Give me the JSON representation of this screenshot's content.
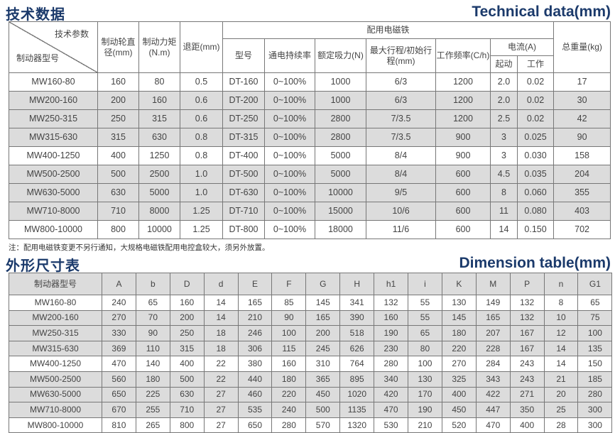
{
  "tech": {
    "title_cn": "技术数据",
    "title_en": "Technical data(mm)",
    "header": {
      "diag_top": "技术参数",
      "diag_bottom": "制动器型号",
      "wheel_dia": "制动轮直径(mm)",
      "torque": "制动力矩(N.m)",
      "retreat": "退距(mm)",
      "magnet_group": "配用电磁铁",
      "model": "型号",
      "duty": "通电持续率",
      "force": "额定吸力(N)",
      "stroke": "最大行程/初始行程(mm)",
      "freq": "工作频率(C/h)",
      "current": "电流(A)",
      "start": "起动",
      "work": "工作",
      "weight": "总重量(kg)"
    },
    "rows": [
      [
        "MW160-80",
        "160",
        "80",
        "0.5",
        "DT-160",
        "0~100%",
        "1000",
        "6/3",
        "1200",
        "2.0",
        "0.02",
        "17"
      ],
      [
        "MW200-160",
        "200",
        "160",
        "0.6",
        "DT-200",
        "0~100%",
        "1000",
        "6/3",
        "1200",
        "2.0",
        "0.02",
        "30"
      ],
      [
        "MW250-315",
        "250",
        "315",
        "0.6",
        "DT-250",
        "0~100%",
        "2800",
        "7/3.5",
        "1200",
        "2.5",
        "0.02",
        "42"
      ],
      [
        "MW315-630",
        "315",
        "630",
        "0.8",
        "DT-315",
        "0~100%",
        "2800",
        "7/3.5",
        "900",
        "3",
        "0.025",
        "90"
      ],
      [
        "MW400-1250",
        "400",
        "1250",
        "0.8",
        "DT-400",
        "0~100%",
        "5000",
        "8/4",
        "900",
        "3",
        "0.030",
        "158"
      ],
      [
        "MW500-2500",
        "500",
        "2500",
        "1.0",
        "DT-500",
        "0~100%",
        "5000",
        "8/4",
        "600",
        "4.5",
        "0.035",
        "204"
      ],
      [
        "MW630-5000",
        "630",
        "5000",
        "1.0",
        "DT-630",
        "0~100%",
        "10000",
        "9/5",
        "600",
        "8",
        "0.060",
        "355"
      ],
      [
        "MW710-8000",
        "710",
        "8000",
        "1.25",
        "DT-710",
        "0~100%",
        "15000",
        "10/6",
        "600",
        "11",
        "0.080",
        "403"
      ],
      [
        "MW800-10000",
        "800",
        "10000",
        "1.25",
        "DT-800",
        "0~100%",
        "18000",
        "11/6",
        "600",
        "14",
        "0.150",
        "702"
      ]
    ],
    "note": "注：配用电磁铁变更不另行通知，大规格电磁铁配用电控盒较大，须另外放置。"
  },
  "dim": {
    "title_cn": "外形尺寸表",
    "title_en": "Dimension table(mm)",
    "headers": [
      "制动器型号",
      "A",
      "b",
      "D",
      "d",
      "E",
      "F",
      "G",
      "H",
      "h1",
      "i",
      "K",
      "M",
      "P",
      "n",
      "G1"
    ],
    "rows": [
      [
        "MW160-80",
        "240",
        "65",
        "160",
        "14",
        "165",
        "85",
        "145",
        "341",
        "132",
        "55",
        "130",
        "149",
        "132",
        "8",
        "65"
      ],
      [
        "MW200-160",
        "270",
        "70",
        "200",
        "14",
        "210",
        "90",
        "165",
        "390",
        "160",
        "55",
        "145",
        "165",
        "132",
        "10",
        "75"
      ],
      [
        "MW250-315",
        "330",
        "90",
        "250",
        "18",
        "246",
        "100",
        "200",
        "518",
        "190",
        "65",
        "180",
        "207",
        "167",
        "12",
        "100"
      ],
      [
        "MW315-630",
        "369",
        "110",
        "315",
        "18",
        "306",
        "115",
        "245",
        "626",
        "230",
        "80",
        "220",
        "228",
        "167",
        "14",
        "135"
      ],
      [
        "MW400-1250",
        "470",
        "140",
        "400",
        "22",
        "380",
        "160",
        "310",
        "764",
        "280",
        "100",
        "270",
        "284",
        "243",
        "14",
        "150"
      ],
      [
        "MW500-2500",
        "560",
        "180",
        "500",
        "22",
        "440",
        "180",
        "365",
        "895",
        "340",
        "130",
        "325",
        "343",
        "243",
        "21",
        "185"
      ],
      [
        "MW630-5000",
        "650",
        "225",
        "630",
        "27",
        "460",
        "220",
        "450",
        "1020",
        "420",
        "170",
        "400",
        "422",
        "271",
        "20",
        "280"
      ],
      [
        "MW710-8000",
        "670",
        "255",
        "710",
        "27",
        "535",
        "240",
        "500",
        "1135",
        "470",
        "190",
        "450",
        "447",
        "350",
        "25",
        "300"
      ],
      [
        "MW800-10000",
        "810",
        "265",
        "800",
        "27",
        "650",
        "280",
        "570",
        "1320",
        "530",
        "210",
        "520",
        "470",
        "400",
        "28",
        "300"
      ]
    ]
  },
  "colors": {
    "title": "#1b3a6b",
    "row_shade": "#dcdcdc"
  },
  "shaded_rows": [
    1,
    2,
    3,
    5,
    6,
    7
  ]
}
